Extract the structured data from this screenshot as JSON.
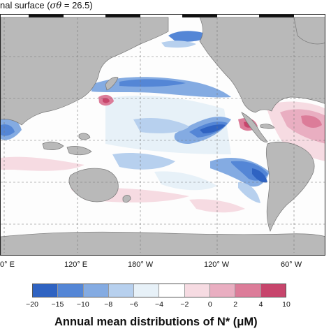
{
  "title": {
    "prefix": "nal surface (",
    "symbol": "σθ",
    "suffix": " = 26.5)"
  },
  "map": {
    "land_color": "#b9b9b9",
    "ocean_color": "#fdfdfd",
    "lon_ticks": [
      "0° E",
      "120° E",
      "180° W",
      "120° W",
      "60° W"
    ]
  },
  "colorbar": {
    "colors": [
      "#2f63c2",
      "#5486d6",
      "#84abe2",
      "#b7d0ee",
      "#e7f1f8",
      "#ffffff",
      "#f6dbe2",
      "#e9aec1",
      "#dc7c99",
      "#c7456c"
    ],
    "tick_labels": [
      "−20",
      "−15",
      "−10",
      "−8",
      "−6",
      "−4",
      "−2",
      "0",
      "2",
      "4",
      "10"
    ]
  },
  "caption": "Annual mean distributions of N* (μM)"
}
